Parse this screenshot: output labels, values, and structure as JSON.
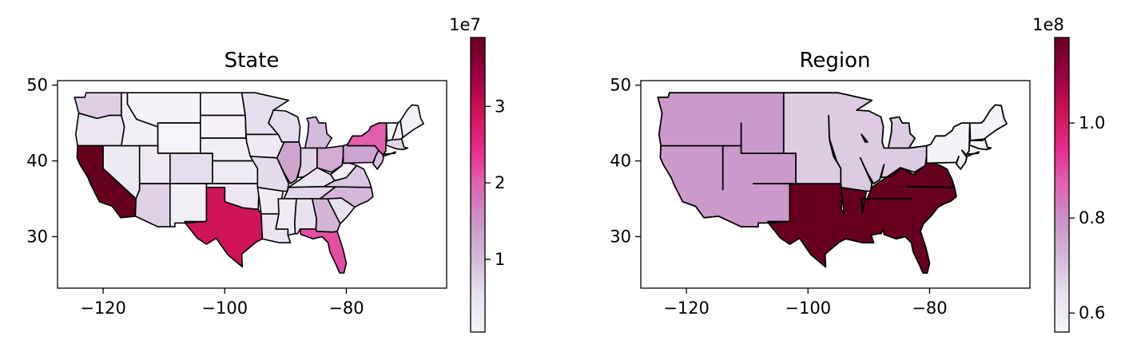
{
  "colors": {
    "cmap": [
      "#f7f4f9",
      "#e7e1ef",
      "#d4b9da",
      "#c994c7",
      "#df65b0",
      "#e7298a",
      "#ce1256",
      "#980043",
      "#67001f"
    ],
    "edge": "#000000",
    "frame": "#000000"
  },
  "chart_data": [
    {
      "type": "choropleth",
      "title": "State",
      "xlim": [
        -127.5,
        -63.5
      ],
      "ylim": [
        23.2,
        50.6
      ],
      "xticks": [
        -120,
        -100,
        -80
      ],
      "xtick_labels": [
        "−120",
        "−100",
        "−80"
      ],
      "yticks": [
        30,
        40,
        50
      ],
      "ytick_labels": [
        "30",
        "40",
        "50"
      ],
      "colorbar": {
        "multiplier_label": "1e7",
        "range": [
          0.05,
          3.9
        ],
        "ticks": [
          1,
          2,
          3
        ],
        "tick_labels": [
          "1",
          "2",
          "3"
        ]
      },
      "values": {
        "Washington": 0.77,
        "Oregon": 0.42,
        "California": 3.9,
        "Nevada": 0.31,
        "Idaho": 0.18,
        "Montana": 0.11,
        "Wyoming": 0.06,
        "Utah": 0.33,
        "Colorado": 0.58,
        "Arizona": 0.73,
        "New Mexico": 0.21,
        "North Dakota": 0.08,
        "South Dakota": 0.09,
        "Nebraska": 0.2,
        "Kansas": 0.29,
        "Oklahoma": 0.4,
        "Texas": 2.9,
        "Minnesota": 0.57,
        "Iowa": 0.32,
        "Missouri": 0.62,
        "Arkansas": 0.3,
        "Louisiana": 0.47,
        "Wisconsin": 0.59,
        "Illinois": 1.28,
        "Michigan": 1.0,
        "Indiana": 0.68,
        "Ohio": 1.18,
        "Kentucky": 0.45,
        "Tennessee": 0.69,
        "Mississippi": 0.3,
        "Alabama": 0.5,
        "Georgia": 1.07,
        "Florida": 2.15,
        "South Carolina": 0.51,
        "North Carolina": 1.04,
        "Virginia": 0.86,
        "West Virginia": 0.18,
        "Pennsylvania": 1.3,
        "New York": 2.02,
        "Maine": 0.14,
        "New Hampshire": 0.14,
        "Vermont": 0.06,
        "Massachusetts": 0.7,
        "New Jersey": 0.93
      }
    },
    {
      "type": "choropleth",
      "title": "Region",
      "xlim": [
        -127.5,
        -63.5
      ],
      "ylim": [
        23.2,
        50.6
      ],
      "xticks": [
        -120,
        -100,
        -80
      ],
      "xtick_labels": [
        "−120",
        "−100",
        "−80"
      ],
      "yticks": [
        30,
        40,
        50
      ],
      "ytick_labels": [
        "30",
        "40",
        "50"
      ],
      "colorbar": {
        "multiplier_label": "1e8",
        "range": [
          0.56,
          1.18
        ],
        "ticks": [
          0.6,
          0.8,
          1.0
        ],
        "tick_labels": [
          "0.6",
          "0.8",
          "1.0"
        ]
      },
      "values": {
        "West": 0.78,
        "Midwest": 0.68,
        "Northeast": 0.57,
        "South": 1.18
      }
    }
  ]
}
